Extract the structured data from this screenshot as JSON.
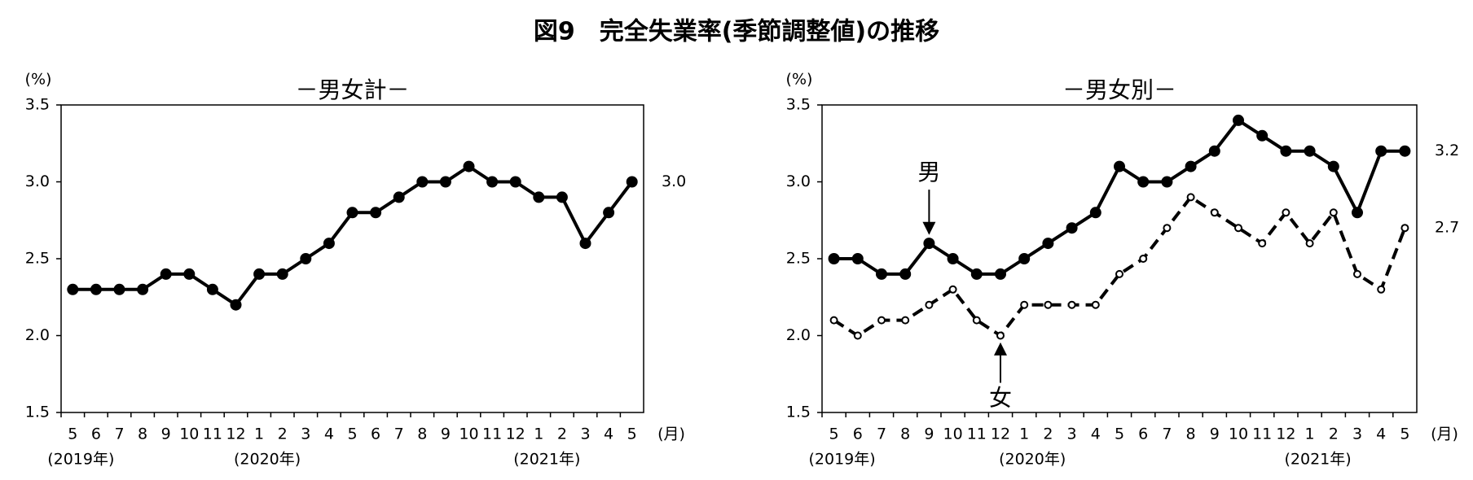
{
  "title": "図9　完全失業率(季節調整値)の推移",
  "chart_data": [
    {
      "type": "line",
      "title": "－男女計－",
      "ylabel": "(%)",
      "xlabel": "(月)",
      "categories": [
        "5",
        "6",
        "7",
        "8",
        "9",
        "10",
        "11",
        "12",
        "1",
        "2",
        "3",
        "4",
        "5",
        "6",
        "7",
        "8",
        "9",
        "10",
        "11",
        "12",
        "1",
        "2",
        "3",
        "4",
        "5"
      ],
      "category_groups": [
        "(2019年)",
        null,
        null,
        null,
        null,
        null,
        null,
        null,
        "(2020年)",
        null,
        null,
        null,
        null,
        null,
        null,
        null,
        null,
        null,
        null,
        null,
        "(2021年)",
        null,
        null,
        null,
        null
      ],
      "series": [
        {
          "color": "#000000",
          "style": "solid",
          "values": [
            2.3,
            2.3,
            2.3,
            2.3,
            2.4,
            2.4,
            2.3,
            2.2,
            2.4,
            2.4,
            2.5,
            2.6,
            2.8,
            2.8,
            2.9,
            3.0,
            3.0,
            3.1,
            3.0,
            3.0,
            2.9,
            2.9,
            2.6,
            2.8,
            3.0
          ],
          "value_labels": [
            null,
            null,
            null,
            null,
            null,
            null,
            null,
            null,
            null,
            null,
            null,
            null,
            null,
            null,
            null,
            null,
            null,
            null,
            null,
            null,
            null,
            null,
            null,
            null,
            "3.0"
          ]
        }
      ],
      "ylim": [
        1.5,
        3.5
      ],
      "yticks": [
        1.5,
        {
          "value": 2,
          "label": "2.0"
        },
        2.5,
        {
          "value": 3,
          "label": "3.0"
        },
        3.5
      ]
    },
    {
      "type": "line",
      "title": "－男女別－",
      "ylabel": "(%)",
      "xlabel": "(月)",
      "categories": [
        "5",
        "6",
        "7",
        "8",
        "9",
        "10",
        "11",
        "12",
        "1",
        "2",
        "3",
        "4",
        "5",
        "6",
        "7",
        "8",
        "9",
        "10",
        "11",
        "12",
        "1",
        "2",
        "3",
        "4",
        "5"
      ],
      "category_groups": [
        "(2019年)",
        null,
        null,
        null,
        null,
        null,
        null,
        null,
        "(2020年)",
        null,
        null,
        null,
        null,
        null,
        null,
        null,
        null,
        null,
        null,
        null,
        "(2021年)",
        null,
        null,
        null,
        null
      ],
      "series": [
        {
          "name": "男",
          "color": "#000000",
          "style": "solid",
          "annotation_index": 4,
          "values": [
            2.5,
            2.5,
            2.4,
            2.4,
            2.6,
            2.5,
            2.4,
            2.4,
            2.5,
            2.6,
            2.7,
            2.8,
            3.1,
            3.0,
            3.0,
            3.1,
            3.2,
            3.4,
            3.3,
            3.2,
            3.2,
            3.1,
            2.8,
            3.2,
            3.2
          ],
          "value_labels": [
            null,
            null,
            null,
            null,
            null,
            null,
            null,
            null,
            null,
            null,
            null,
            null,
            null,
            null,
            null,
            null,
            null,
            null,
            null,
            null,
            null,
            null,
            null,
            null,
            "3.2"
          ]
        },
        {
          "name": "女",
          "color": "#000000",
          "style": "dashed",
          "annotation_index": 7,
          "values": [
            2.1,
            2.0,
            2.1,
            2.1,
            2.2,
            2.3,
            2.1,
            2.0,
            2.2,
            2.2,
            2.2,
            2.2,
            2.4,
            2.5,
            2.7,
            2.9,
            2.8,
            2.7,
            2.6,
            2.8,
            2.6,
            2.8,
            2.4,
            2.3,
            2.7
          ],
          "value_labels": [
            null,
            null,
            null,
            null,
            null,
            null,
            null,
            null,
            null,
            null,
            null,
            null,
            null,
            null,
            null,
            null,
            null,
            null,
            null,
            null,
            null,
            null,
            null,
            null,
            "2.7"
          ]
        }
      ],
      "ylim": [
        1.5,
        3.5
      ],
      "yticks": [
        1.5,
        {
          "value": 2,
          "label": "2.0"
        },
        2.5,
        {
          "value": 3,
          "label": "3.0"
        },
        3.5
      ]
    }
  ]
}
